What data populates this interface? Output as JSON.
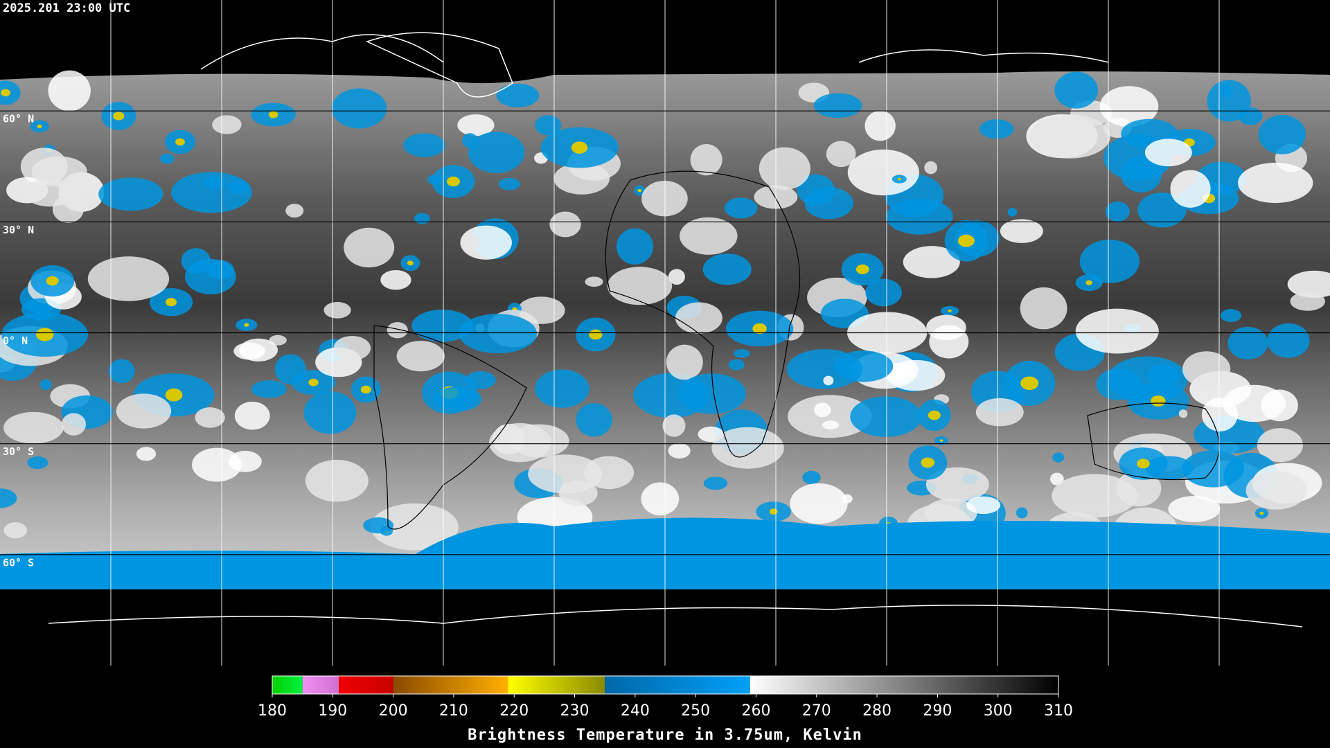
{
  "header": {
    "timestamp": "2025.201 23:00 UTC"
  },
  "map": {
    "lat_range": [
      -90,
      90
    ],
    "lat_grid": [
      {
        "value": 60,
        "label": "60° N"
      },
      {
        "value": 30,
        "label": "30° N"
      },
      {
        "value": 0,
        "label": "0° N"
      },
      {
        "value": -30,
        "label": "30° S"
      },
      {
        "value": -60,
        "label": "60° S"
      }
    ]
  },
  "colorbar": {
    "title": "Brightness Temperature in 3.75um, Kelvin",
    "range": [
      180,
      310
    ],
    "ticks": [
      180,
      190,
      200,
      210,
      220,
      230,
      240,
      250,
      260,
      270,
      280,
      290,
      300,
      310
    ],
    "segments": [
      {
        "start": 180,
        "end": 185,
        "colors": [
          "#00d000",
          "#00f040"
        ]
      },
      {
        "start": 185,
        "end": 191,
        "colors": [
          "#f090f0",
          "#d070d0"
        ]
      },
      {
        "start": 191,
        "end": 200,
        "colors": [
          "#f00000",
          "#c80000"
        ]
      },
      {
        "start": 200,
        "end": 219,
        "colors": [
          "#8a4a00",
          "#ffb000"
        ]
      },
      {
        "start": 219,
        "end": 235,
        "colors": [
          "#ffff00",
          "#8a8a00"
        ]
      },
      {
        "start": 235,
        "end": 259,
        "colors": [
          "#0068a8",
          "#00a0f8"
        ]
      },
      {
        "start": 259,
        "end": 310,
        "colors": [
          "#ffffff",
          "#000000"
        ]
      }
    ]
  }
}
